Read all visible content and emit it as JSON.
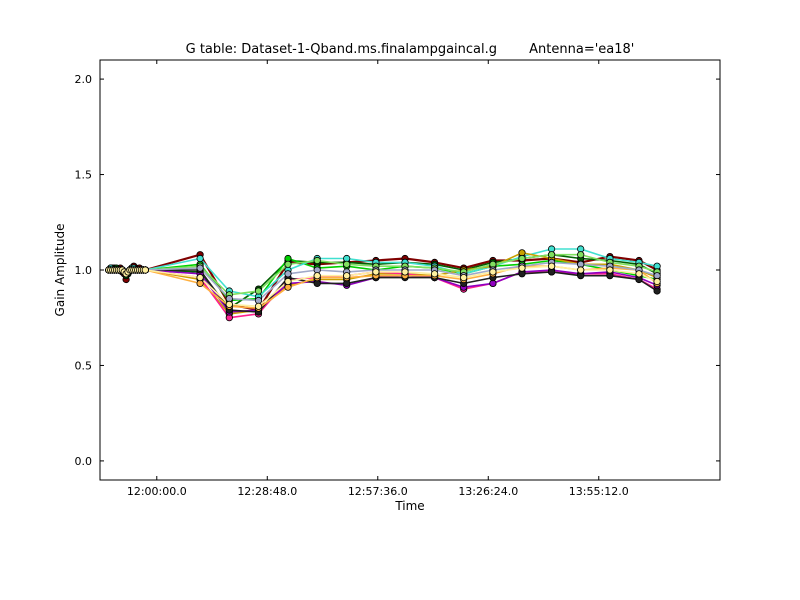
{
  "chart_data": {
    "type": "line",
    "title_left": "G table: Dataset-1-Qband.ms.finalampgaincal.g",
    "title_right": "Antenna='ea18'",
    "xlabel": "Time",
    "ylabel": "Gain Amplitude",
    "ylim": [
      -0.1,
      2.1
    ],
    "xlim_minutes": [
      -14.8,
      146.8
    ],
    "xticks": [
      {
        "label": "12:00:00.0",
        "minutes": 0
      },
      {
        "label": "12:28:48.0",
        "minutes": 28.8
      },
      {
        "label": "12:57:36.0",
        "minutes": 57.6
      },
      {
        "label": "13:26:24.0",
        "minutes": 86.4
      },
      {
        "label": "13:55:12.0",
        "minutes": 115.2
      }
    ],
    "yticks": [
      {
        "label": "0.0",
        "value": 0.0
      },
      {
        "label": "0.5",
        "value": 0.5
      },
      {
        "label": "1.0",
        "value": 1.0
      },
      {
        "label": "1.5",
        "value": 1.5
      },
      {
        "label": "2.0",
        "value": 2.0
      }
    ],
    "x_minutes": [
      -12.5,
      -12.0,
      -11.5,
      -11.0,
      -10.5,
      -10.0,
      -9.5,
      -9.0,
      -8.5,
      -8.0,
      -7.5,
      -7.0,
      -6.5,
      -6.0,
      -5.5,
      -5.0,
      -4.5,
      -4.0,
      -3.5,
      -3.0,
      11.3,
      18.9,
      26.5,
      34.2,
      41.8,
      49.5,
      57.1,
      64.7,
      72.4,
      80.0,
      87.6,
      95.2,
      102.9,
      110.5,
      118.1,
      125.7,
      130.4
    ],
    "series": [
      {
        "color": "#800000",
        "values": [
          1.0,
          1.01,
          1.0,
          1.01,
          1.0,
          1.0,
          1.01,
          0.99,
          0.98,
          0.95,
          0.99,
          1.0,
          1.01,
          1.02,
          1.01,
          1.0,
          1.01,
          1.0,
          1.0,
          1.0,
          1.08,
          0.82,
          0.79,
          1.04,
          1.03,
          1.04,
          1.05,
          1.06,
          1.04,
          1.01,
          1.05,
          1.05,
          1.06,
          1.04,
          1.07,
          1.05,
          1.0
        ]
      },
      {
        "color": "#006000",
        "values": [
          1.0,
          1.0,
          1.01,
          1.0,
          1.01,
          1.0,
          1.0,
          1.0,
          0.99,
          0.97,
          0.98,
          1.0,
          1.0,
          1.01,
          1.0,
          1.0,
          1.0,
          1.0,
          1.0,
          1.0,
          0.99,
          0.8,
          0.9,
          1.05,
          1.04,
          1.04,
          1.03,
          1.04,
          1.03,
          1.0,
          1.04,
          1.06,
          1.08,
          1.06,
          1.05,
          1.03,
          0.98
        ]
      },
      {
        "color": "#00d000",
        "values": [
          1.0,
          1.0,
          1.0,
          1.0,
          1.0,
          1.0,
          1.0,
          1.0,
          0.99,
          0.98,
          0.99,
          1.0,
          1.0,
          1.0,
          1.0,
          1.0,
          1.0,
          1.0,
          1.0,
          1.0,
          1.03,
          0.84,
          0.85,
          1.06,
          1.01,
          1.02,
          1.0,
          1.02,
          1.01,
          0.98,
          1.02,
          1.03,
          1.05,
          1.03,
          1.0,
          0.97,
          0.95
        ]
      },
      {
        "color": "#40e0d0",
        "values": [
          1.0,
          1.01,
          1.0,
          1.0,
          1.0,
          1.0,
          1.0,
          1.0,
          0.99,
          0.98,
          0.99,
          1.0,
          1.01,
          1.01,
          1.0,
          1.0,
          1.0,
          1.0,
          1.0,
          1.0,
          1.06,
          0.89,
          0.86,
          1.0,
          1.06,
          1.06,
          1.04,
          1.04,
          1.02,
          0.98,
          1.02,
          1.07,
          1.11,
          1.11,
          1.06,
          1.04,
          1.02
        ]
      },
      {
        "color": "#c8a000",
        "values": [
          1.0,
          1.0,
          1.0,
          1.0,
          1.0,
          1.0,
          1.0,
          1.0,
          0.99,
          0.98,
          0.99,
          1.0,
          1.0,
          1.0,
          1.0,
          1.0,
          1.0,
          1.0,
          1.0,
          1.0,
          0.95,
          0.77,
          0.79,
          0.92,
          0.95,
          0.95,
          0.98,
          0.98,
          0.97,
          1.0,
          1.02,
          1.09,
          1.06,
          1.03,
          1.03,
          1.0,
          0.96
        ]
      },
      {
        "color": "#ff2090",
        "values": [
          1.0,
          1.0,
          1.0,
          1.0,
          1.0,
          1.0,
          1.0,
          1.0,
          0.99,
          0.98,
          0.99,
          1.0,
          1.0,
          1.0,
          1.0,
          1.0,
          1.0,
          1.0,
          1.0,
          1.0,
          0.96,
          0.75,
          0.77,
          0.95,
          0.96,
          0.97,
          0.99,
          0.98,
          0.96,
          0.9,
          0.93,
          0.99,
          0.99,
          0.98,
          0.98,
          0.95,
          0.9
        ]
      },
      {
        "color": "#9000c0",
        "values": [
          1.0,
          1.0,
          1.0,
          1.0,
          1.0,
          1.0,
          1.0,
          1.0,
          0.99,
          0.98,
          0.99,
          1.0,
          1.0,
          1.0,
          1.0,
          1.0,
          1.0,
          1.0,
          1.0,
          1.0,
          0.98,
          0.78,
          0.79,
          0.93,
          0.94,
          0.92,
          0.96,
          0.97,
          0.96,
          0.91,
          0.93,
          0.99,
          1.0,
          0.98,
          0.99,
          0.96,
          0.92
        ]
      },
      {
        "color": "#202020",
        "values": [
          1.0,
          1.0,
          1.0,
          1.0,
          1.0,
          1.0,
          1.0,
          1.0,
          0.99,
          0.98,
          0.99,
          1.0,
          1.0,
          1.0,
          1.0,
          1.0,
          1.0,
          1.0,
          1.0,
          1.0,
          1.0,
          0.79,
          0.78,
          0.96,
          0.93,
          0.93,
          0.96,
          0.96,
          0.96,
          0.93,
          0.96,
          0.98,
          0.99,
          0.97,
          0.97,
          0.95,
          0.89
        ]
      },
      {
        "color": "#ffb040",
        "values": [
          1.0,
          1.0,
          1.0,
          1.0,
          1.0,
          1.0,
          1.0,
          1.0,
          0.99,
          0.98,
          0.99,
          1.0,
          1.0,
          1.0,
          1.0,
          1.0,
          1.0,
          1.0,
          1.0,
          1.0,
          0.93,
          0.81,
          0.8,
          0.91,
          0.96,
          0.96,
          0.97,
          0.97,
          0.97,
          0.95,
          0.98,
          1.02,
          1.02,
          1.0,
          1.01,
          1.0,
          0.93
        ]
      },
      {
        "color": "#80e060",
        "values": [
          1.0,
          1.0,
          1.0,
          1.0,
          1.0,
          1.0,
          1.0,
          1.0,
          0.99,
          0.98,
          0.99,
          1.0,
          1.0,
          1.0,
          1.0,
          1.0,
          1.0,
          1.0,
          1.0,
          1.0,
          1.02,
          0.87,
          0.89,
          1.03,
          1.05,
          1.03,
          1.02,
          1.02,
          1.01,
          0.99,
          1.03,
          1.06,
          1.08,
          1.08,
          1.04,
          1.02,
          0.99
        ]
      },
      {
        "color": "#a0a8c8",
        "values": [
          1.0,
          1.0,
          1.0,
          1.0,
          1.0,
          1.0,
          1.0,
          1.0,
          0.99,
          0.98,
          0.99,
          1.0,
          1.0,
          1.0,
          1.0,
          1.0,
          1.0,
          1.0,
          1.0,
          1.0,
          1.01,
          0.85,
          0.84,
          0.98,
          1.0,
          0.99,
          1.0,
          1.0,
          1.0,
          0.97,
          1.0,
          1.02,
          1.04,
          1.03,
          1.02,
          1.0,
          0.97
        ]
      },
      {
        "color": "#fff0a0",
        "values": [
          1.0,
          1.0,
          1.0,
          1.0,
          1.0,
          1.0,
          1.0,
          1.0,
          0.99,
          0.98,
          0.99,
          1.0,
          1.0,
          1.0,
          1.0,
          1.0,
          1.0,
          1.0,
          1.0,
          1.0,
          0.96,
          0.82,
          0.81,
          0.94,
          0.97,
          0.97,
          0.99,
          0.99,
          0.98,
          0.96,
          0.99,
          1.01,
          1.02,
          1.0,
          1.0,
          0.98,
          0.94
        ]
      }
    ]
  }
}
